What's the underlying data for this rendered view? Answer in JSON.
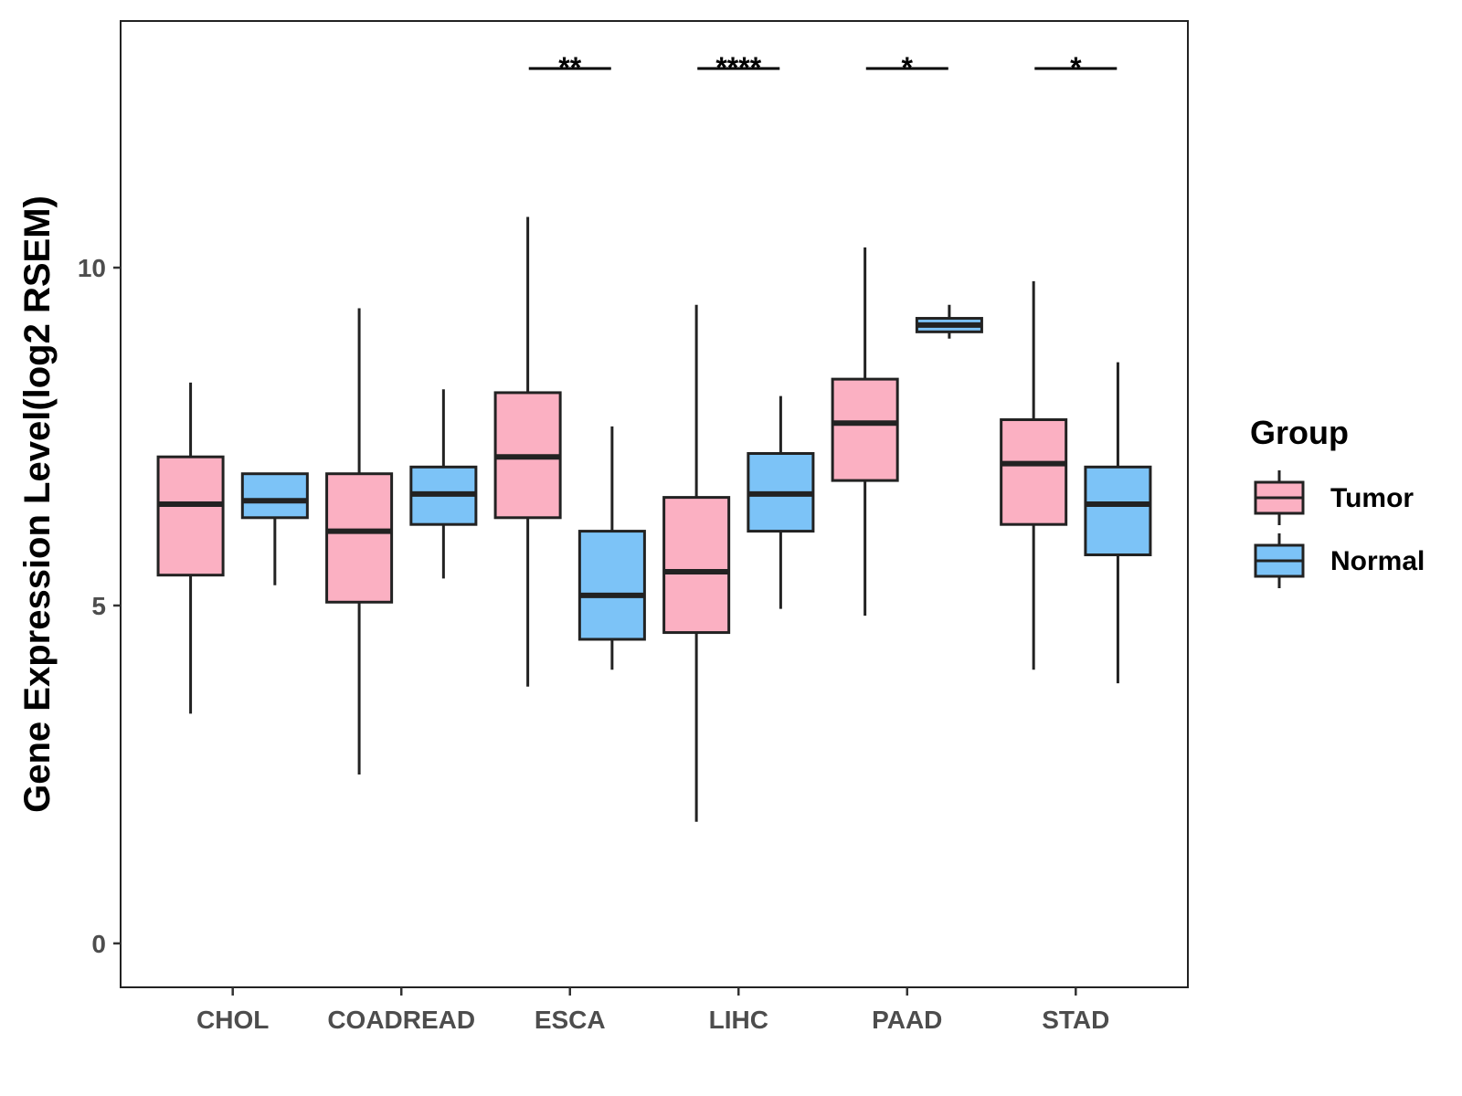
{
  "chart_data": {
    "type": "boxplot",
    "ylabel": "Gene Expression Level(log2 RSEM)",
    "xlabel": "",
    "ylim": [
      -0.65,
      13.65
    ],
    "yticks": [
      0,
      5,
      10
    ],
    "categories": [
      "CHOL",
      "COADREAD",
      "ESCA",
      "LIHC",
      "PAAD",
      "STAD"
    ],
    "legend": {
      "title": "Group",
      "position": "right",
      "entries": [
        {
          "name": "Tumor",
          "color": "#FBB0C2"
        },
        {
          "name": "Normal",
          "color": "#7CC3F7"
        }
      ]
    },
    "series": [
      {
        "name": "Tumor",
        "color": "#FBB0C2",
        "boxes": [
          {
            "category": "CHOL",
            "min": 3.4,
            "q1": 5.45,
            "median": 6.5,
            "q3": 7.2,
            "max": 8.3
          },
          {
            "category": "COADREAD",
            "min": 2.5,
            "q1": 5.05,
            "median": 6.1,
            "q3": 6.95,
            "max": 9.4
          },
          {
            "category": "ESCA",
            "min": 3.8,
            "q1": 6.3,
            "median": 7.2,
            "q3": 8.15,
            "max": 10.75
          },
          {
            "category": "LIHC",
            "min": 1.8,
            "q1": 4.6,
            "median": 5.5,
            "q3": 6.6,
            "max": 9.45
          },
          {
            "category": "PAAD",
            "min": 4.85,
            "q1": 6.85,
            "median": 7.7,
            "q3": 8.35,
            "max": 10.3
          },
          {
            "category": "STAD",
            "min": 4.05,
            "q1": 6.2,
            "median": 7.1,
            "q3": 7.75,
            "max": 9.8
          }
        ]
      },
      {
        "name": "Normal",
        "color": "#7CC3F7",
        "boxes": [
          {
            "category": "CHOL",
            "min": 5.3,
            "q1": 6.3,
            "median": 6.55,
            "q3": 6.95,
            "max": 6.95
          },
          {
            "category": "COADREAD",
            "min": 5.4,
            "q1": 6.2,
            "median": 6.65,
            "q3": 7.05,
            "max": 8.2
          },
          {
            "category": "ESCA",
            "min": 4.05,
            "q1": 4.5,
            "median": 5.15,
            "q3": 6.1,
            "max": 7.65
          },
          {
            "category": "LIHC",
            "min": 4.95,
            "q1": 6.1,
            "median": 6.65,
            "q3": 7.25,
            "max": 8.1
          },
          {
            "category": "PAAD",
            "min": 8.95,
            "q1": 9.05,
            "median": 9.15,
            "q3": 9.25,
            "max": 9.45
          },
          {
            "category": "STAD",
            "min": 3.85,
            "q1": 5.75,
            "median": 6.5,
            "q3": 7.05,
            "max": 8.6
          }
        ]
      }
    ],
    "significance": [
      {
        "category": "ESCA",
        "label": "**"
      },
      {
        "category": "LIHC",
        "label": "****"
      },
      {
        "category": "PAAD",
        "label": "*"
      },
      {
        "category": "STAD",
        "label": "*"
      }
    ]
  }
}
